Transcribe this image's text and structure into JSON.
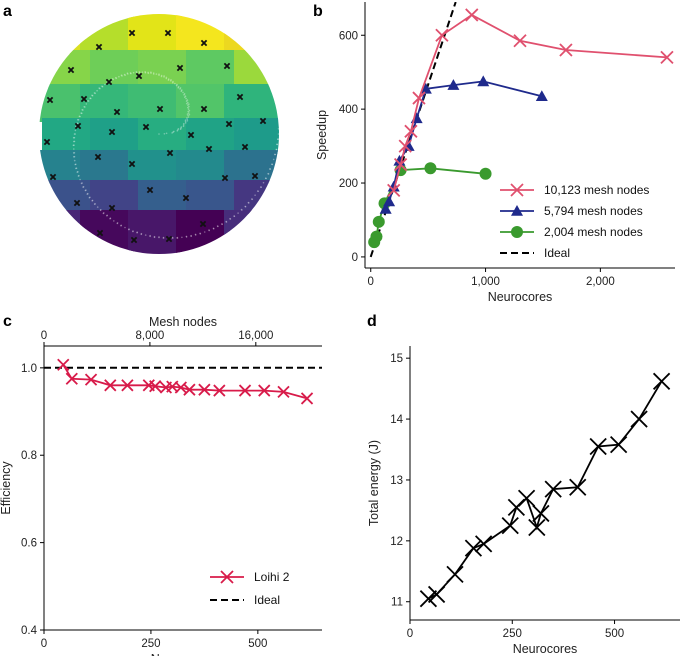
{
  "panels": {
    "a": {
      "letter": "a"
    },
    "b": {
      "letter": "b"
    },
    "c": {
      "letter": "c"
    },
    "d": {
      "letter": "d"
    }
  },
  "chart_data": [
    {
      "panel": "a",
      "type": "other",
      "title": "",
      "description_kind": "partitioned disk mesh with partition centers",
      "regions": 28,
      "colormap": [
        "#440154",
        "#3b528b",
        "#21918c",
        "#5ec962",
        "#fde725"
      ]
    },
    {
      "panel": "b",
      "type": "line",
      "xlabel": "Neurocores",
      "ylabel": "Speedup",
      "xlim": [
        -50,
        2650
      ],
      "ylim": [
        -30,
        690
      ],
      "xticks": [
        0,
        1000,
        2000
      ],
      "xtick_labels": [
        "0",
        "1,000",
        "2,000"
      ],
      "yticks": [
        0,
        200,
        400,
        600
      ],
      "ytick_labels": [
        "0",
        "200",
        "400",
        "600"
      ],
      "series": [
        {
          "name": "10,123 mesh nodes",
          "marker": "x",
          "color": "#e0506e",
          "x": [
            200,
            260,
            300,
            350,
            420,
            620,
            880,
            1300,
            1700,
            2580
          ],
          "y": [
            180,
            250,
            300,
            340,
            430,
            600,
            655,
            585,
            560,
            540
          ]
        },
        {
          "name": "5,794 mesh nodes",
          "marker": "triangle",
          "color": "#1f2a8c",
          "x": [
            130,
            160,
            200,
            250,
            330,
            400,
            480,
            720,
            980,
            1490
          ],
          "y": [
            130,
            150,
            190,
            260,
            300,
            375,
            455,
            465,
            475,
            435
          ]
        },
        {
          "name": "2,004 mesh nodes",
          "marker": "circle",
          "color": "#3a9a2e",
          "x": [
            30,
            50,
            70,
            120,
            260,
            520,
            1000
          ],
          "y": [
            40,
            55,
            95,
            145,
            235,
            240,
            225
          ]
        },
        {
          "name": "Ideal",
          "marker": "none",
          "color": "#000000",
          "dashed": true,
          "x": [
            0,
            740
          ],
          "y": [
            0,
            690
          ]
        }
      ]
    },
    {
      "panel": "c",
      "type": "line",
      "xlabel": "Neurocores",
      "ylabel": "Efficiency",
      "top_xlabel": "Mesh nodes",
      "xlim": [
        0,
        650
      ],
      "ylim": [
        0.4,
        1.05
      ],
      "xticks": [
        0,
        250,
        500
      ],
      "xtick_labels": [
        "0",
        "250",
        "500"
      ],
      "top_xticks": [
        0,
        8000,
        16000
      ],
      "top_xtick_labels": [
        "0",
        "8,000",
        "16,000"
      ],
      "top_xlim": [
        0,
        21000
      ],
      "yticks": [
        0.4,
        0.6,
        0.8,
        1.0
      ],
      "ytick_labels": [
        "0.4",
        "0.6",
        "0.8",
        "1.0"
      ],
      "series": [
        {
          "name": "Loihi 2",
          "marker": "x",
          "color": "#d81b4a",
          "x": [
            45,
            65,
            110,
            155,
            195,
            245,
            260,
            285,
            300,
            320,
            340,
            375,
            410,
            470,
            515,
            560,
            615
          ],
          "y": [
            1.007,
            0.975,
            0.973,
            0.96,
            0.96,
            0.96,
            0.958,
            0.955,
            0.957,
            0.955,
            0.95,
            0.95,
            0.948,
            0.948,
            0.948,
            0.945,
            0.93
          ]
        },
        {
          "name": "Ideal",
          "marker": "none",
          "color": "#000000",
          "dashed": true,
          "x": [
            0,
            650
          ],
          "y": [
            1.0,
            1.0
          ]
        }
      ]
    },
    {
      "panel": "d",
      "type": "line",
      "xlabel": "Neurocores",
      "ylabel": "Total energy (J)",
      "xlim": [
        0,
        660
      ],
      "ylim": [
        10.7,
        15.2
      ],
      "xticks": [
        0,
        250,
        500
      ],
      "xtick_labels": [
        "0",
        "250",
        "500"
      ],
      "yticks": [
        11,
        12,
        13,
        14,
        15
      ],
      "ytick_labels": [
        "11",
        "12",
        "13",
        "14",
        "15"
      ],
      "series": [
        {
          "name": "Total energy",
          "marker": "x",
          "color": "#000000",
          "x": [
            45,
            65,
            110,
            155,
            180,
            245,
            260,
            285,
            310,
            320,
            350,
            410,
            460,
            510,
            560,
            615
          ],
          "y": [
            11.05,
            11.12,
            11.45,
            11.88,
            11.95,
            12.25,
            12.55,
            12.7,
            12.22,
            12.45,
            12.85,
            12.88,
            13.55,
            13.58,
            14.0,
            14.62
          ]
        }
      ]
    }
  ]
}
